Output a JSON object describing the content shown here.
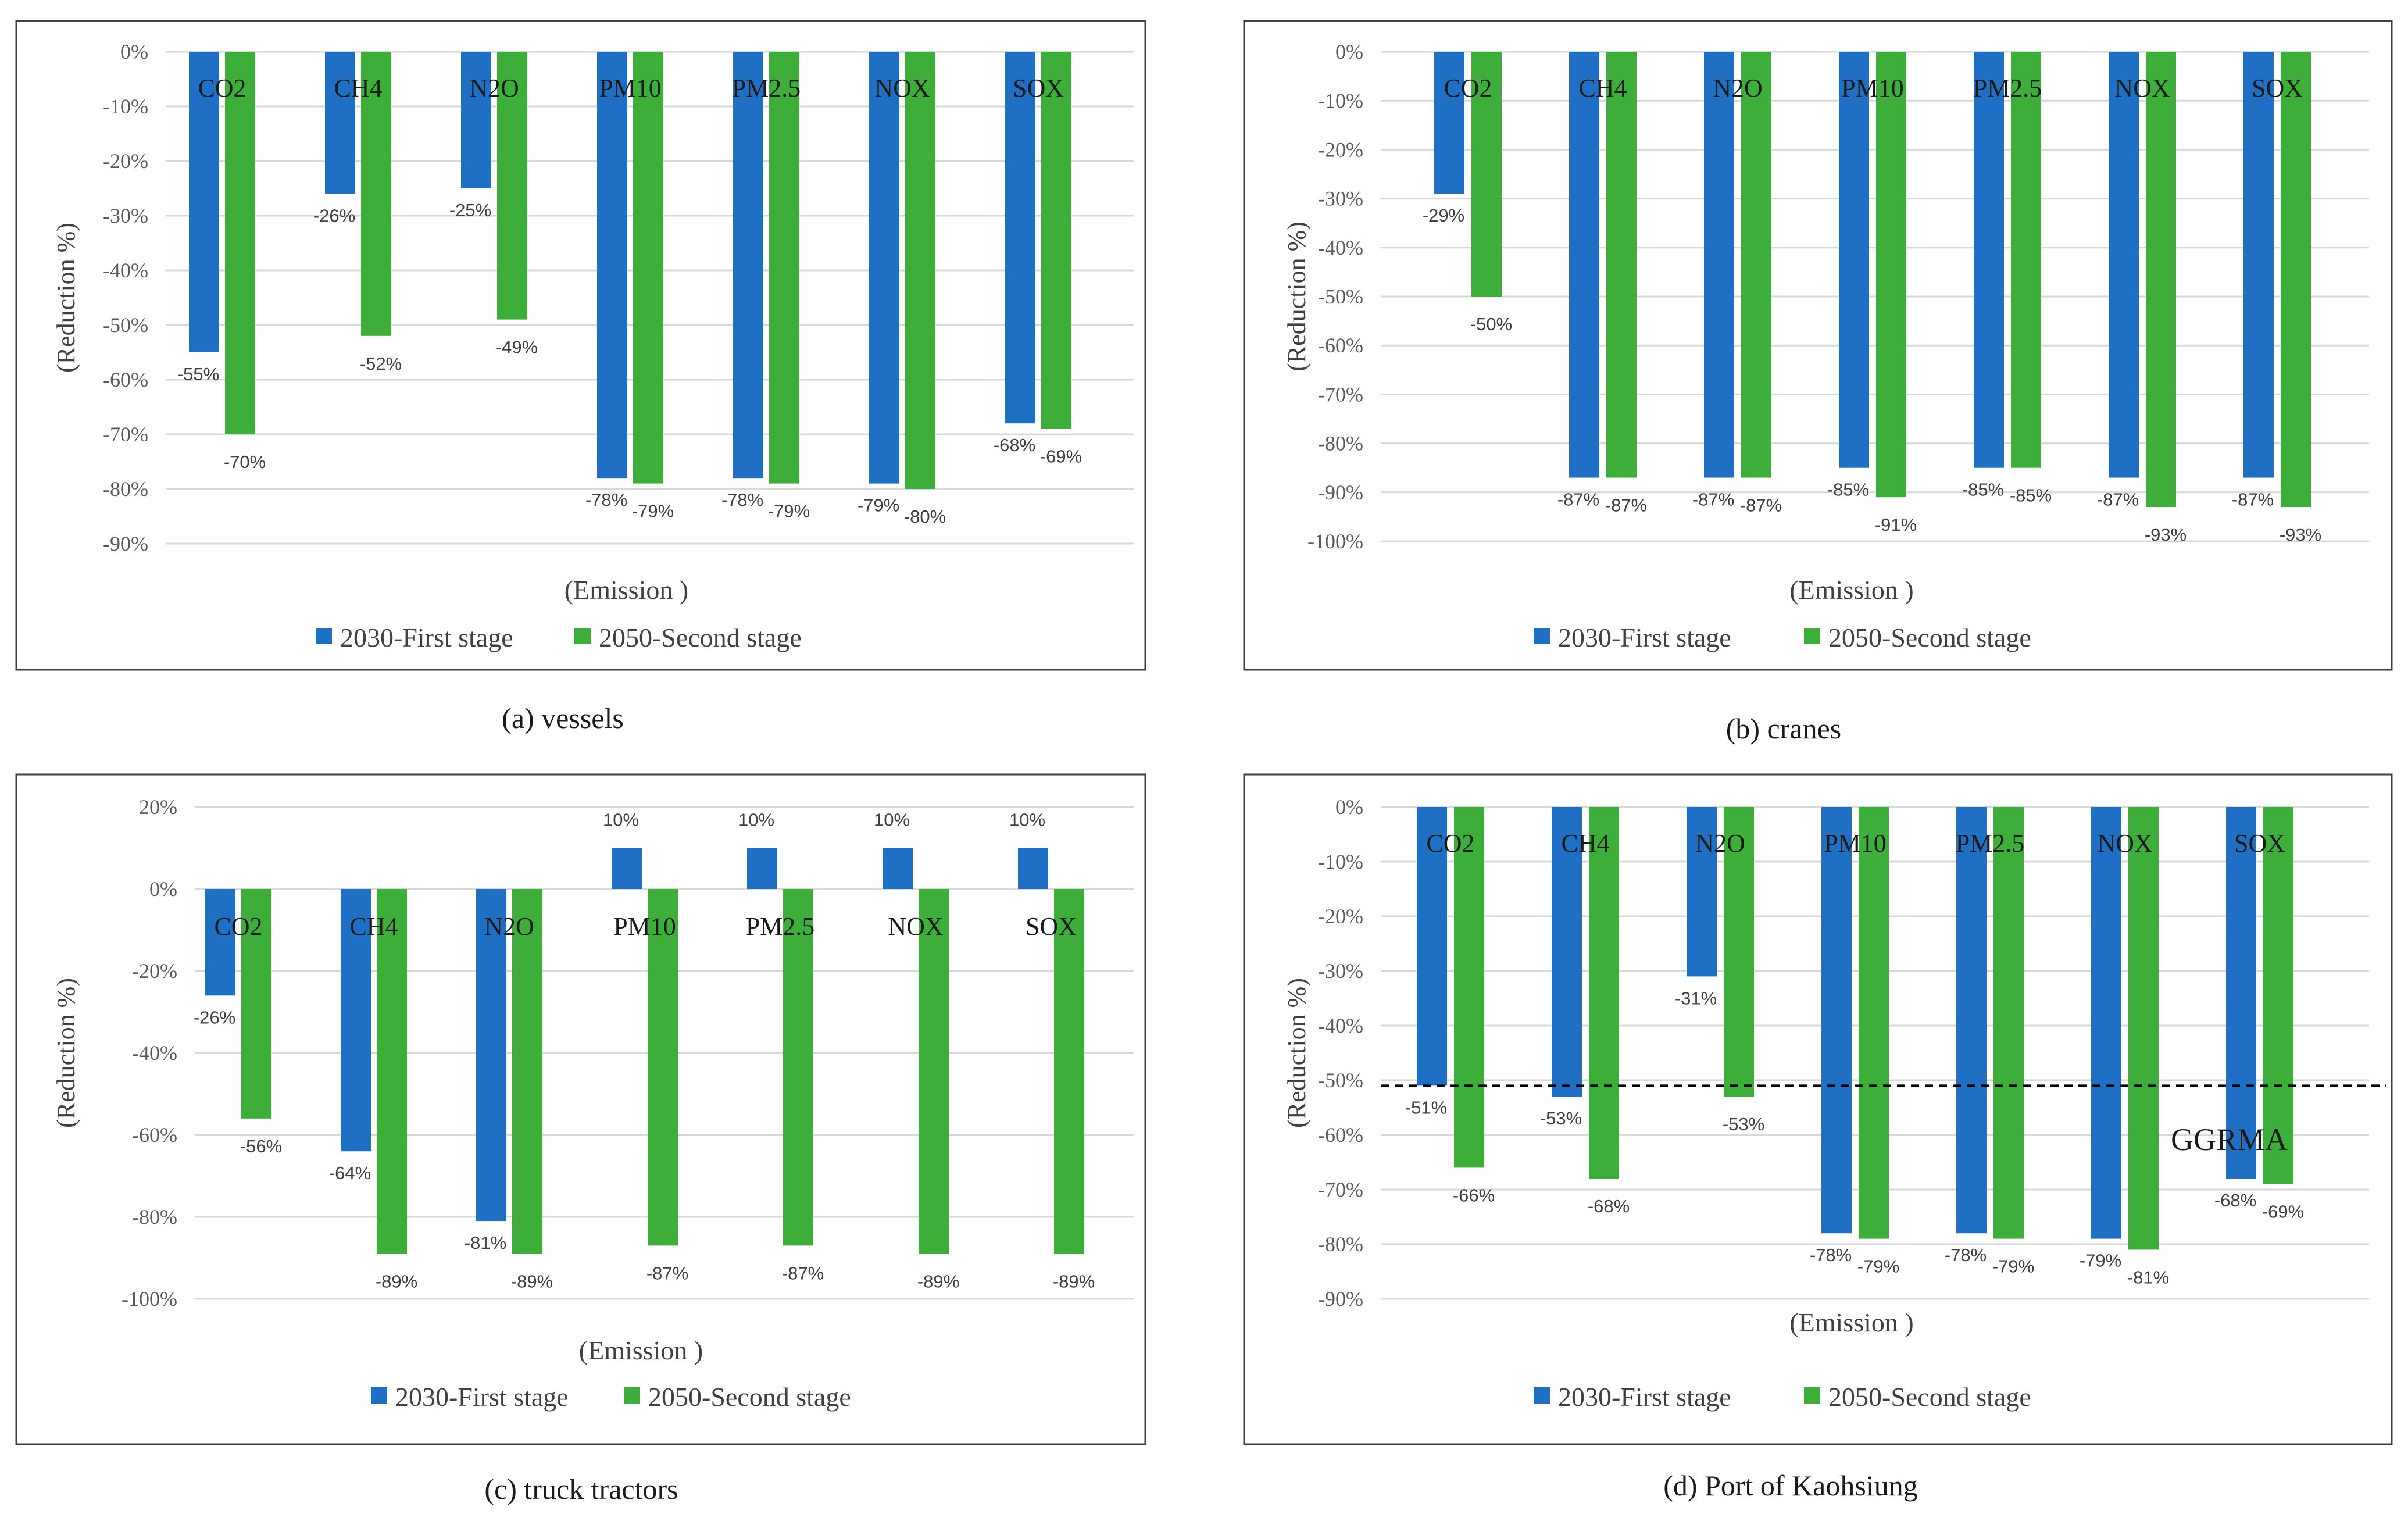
{
  "colors": {
    "first": "#1f6fc5",
    "second": "#3eae3b",
    "grid": "#d9d9d9",
    "frame": "#404040"
  },
  "chart_data": [
    {
      "type": "bar",
      "title": "",
      "caption": "(a) vessels",
      "xlabel": "(Emission  )",
      "ylabel": "(Reduction %)",
      "categories": [
        "CO2",
        "CH4",
        "N2O",
        "PM10",
        "PM2.5",
        "NOX",
        "SOX"
      ],
      "series": [
        {
          "name": "2030-First stage",
          "values": [
            -55,
            -26,
            -25,
            -78,
            -78,
            -79,
            -68
          ]
        },
        {
          "name": "2050-Second stage",
          "values": [
            -70,
            -52,
            -49,
            -79,
            -79,
            -80,
            -69
          ]
        }
      ],
      "data_labels": [
        [
          "-55%",
          "-26%",
          "-25%",
          "-78%",
          "-78%",
          "-79%",
          "-68%"
        ],
        [
          "-70%",
          "-52%",
          "-49%",
          "-79%",
          "-79%",
          "-80%",
          "-69%"
        ]
      ],
      "yticks": [
        0,
        -10,
        -20,
        -30,
        -40,
        -50,
        -60,
        -70,
        -80,
        -90
      ],
      "ytick_labels": [
        "0%",
        "-10%",
        "-20%",
        "-30%",
        "-40%",
        "-50%",
        "-60%",
        "-70%",
        "-80%",
        "-90%"
      ],
      "ylim": [
        -90,
        0
      ],
      "legend": "bottom"
    },
    {
      "type": "bar",
      "title": "",
      "caption": "(b) cranes",
      "xlabel": "(Emission  )",
      "ylabel": "(Reduction %)",
      "categories": [
        "CO2",
        "CH4",
        "N2O",
        "PM10",
        "PM2.5",
        "NOX",
        "SOX"
      ],
      "series": [
        {
          "name": "2030-First stage",
          "values": [
            -29,
            -87,
            -87,
            -85,
            -85,
            -87,
            -87
          ]
        },
        {
          "name": "2050-Second stage",
          "values": [
            -50,
            -87,
            -87,
            -91,
            -85,
            -93,
            -93
          ]
        }
      ],
      "data_labels": [
        [
          "-29%",
          "-87%",
          "-87%",
          "-85%",
          "-85%",
          "-87%",
          "-87%"
        ],
        [
          "-50%",
          "-87%",
          "-87%",
          "-91%",
          "-85%",
          "-93%",
          "-93%"
        ]
      ],
      "yticks": [
        0,
        -10,
        -20,
        -30,
        -40,
        -50,
        -60,
        -70,
        -80,
        -90,
        -100
      ],
      "ytick_labels": [
        "0%",
        "-10%",
        "-20%",
        "-30%",
        "-40%",
        "-50%",
        "-60%",
        "-70%",
        "-80%",
        "-90%",
        "-100%"
      ],
      "ylim": [
        -100,
        0
      ],
      "legend": "bottom"
    },
    {
      "type": "bar",
      "title": "",
      "caption": "(c) truck tractors",
      "xlabel": "(Emission  )",
      "ylabel": "(Reduction %)",
      "categories": [
        "CO2",
        "CH4",
        "N2O",
        "PM10",
        "PM2.5",
        "NOX",
        "SOX"
      ],
      "series": [
        {
          "name": "2030-First stage",
          "values": [
            -26,
            -64,
            -81,
            10,
            10,
            10,
            10
          ]
        },
        {
          "name": "2050-Second stage",
          "values": [
            -56,
            -89,
            -89,
            -87,
            -87,
            -89,
            -89
          ]
        }
      ],
      "data_labels": [
        [
          "-26%",
          "-64%",
          "-81%",
          "10%",
          "10%",
          "10%",
          "10%"
        ],
        [
          "-56%",
          "-89%",
          "-89%",
          "-87%",
          "-87%",
          "-89%",
          "-89%"
        ]
      ],
      "yticks": [
        20,
        0,
        -20,
        -40,
        -60,
        -80,
        -100
      ],
      "ytick_labels": [
        "20%",
        "0%",
        "-20%",
        "-40%",
        "-60%",
        "-80%",
        "-100%"
      ],
      "ylim": [
        -100,
        20
      ],
      "legend": "bottom"
    },
    {
      "type": "bar",
      "title": "",
      "caption": "(d) Port of Kaohsiung",
      "xlabel": "(Emission  )",
      "ylabel": "(Reduction %)",
      "categories": [
        "CO2",
        "CH4",
        "N2O",
        "PM10",
        "PM2.5",
        "NOX",
        "SOX"
      ],
      "series": [
        {
          "name": "2030-First stage",
          "values": [
            -51,
            -53,
            -31,
            -78,
            -78,
            -79,
            -68
          ]
        },
        {
          "name": "2050-Second stage",
          "values": [
            -66,
            -68,
            -53,
            -79,
            -79,
            -81,
            -69
          ]
        }
      ],
      "data_labels": [
        [
          "-51%",
          "-53%",
          "-31%",
          "-78%",
          "-78%",
          "-79%",
          "-68%"
        ],
        [
          "-66%",
          "-68%",
          "-53%",
          "-79%",
          "-79%",
          "-81%",
          "-69%"
        ]
      ],
      "yticks": [
        0,
        -10,
        -20,
        -30,
        -40,
        -50,
        -60,
        -70,
        -80,
        -90
      ],
      "ytick_labels": [
        "0%",
        "-10%",
        "-20%",
        "-30%",
        "-40%",
        "-50%",
        "-60%",
        "-70%",
        "-80%",
        "-90%"
      ],
      "ylim": [
        -90,
        0
      ],
      "reference_line": {
        "value": -51,
        "label": "GGRMA",
        "style": "dashed"
      },
      "legend": "bottom"
    }
  ]
}
